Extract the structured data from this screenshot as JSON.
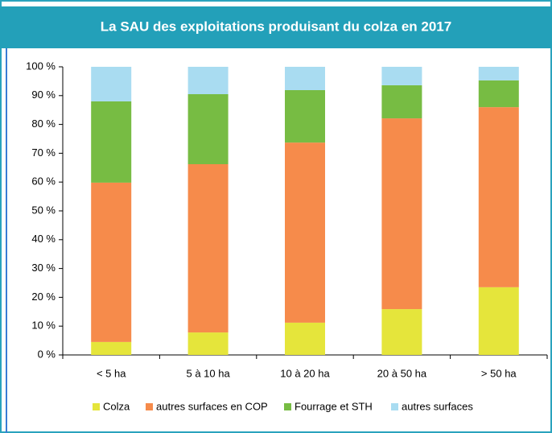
{
  "chart_data": {
    "type": "stacked_bar",
    "title": "La SAU des exploitations produisant du colza en 2017",
    "categories": [
      "< 5 ha",
      "5 à 10 ha",
      "10 à 20 ha",
      "20 à 50 ha",
      "> 50 ha"
    ],
    "series": [
      {
        "name": "Colza",
        "color": "#e5e53b",
        "values": [
          4.5,
          7.8,
          11.2,
          15.9,
          23.5
        ]
      },
      {
        "name": "autres surfaces en COP",
        "color": "#f68b4b",
        "values": [
          55.3,
          58.4,
          62.5,
          66.2,
          62.5
        ]
      },
      {
        "name": "Fourrage et STH",
        "color": "#77bc43",
        "values": [
          28.2,
          24.3,
          18.2,
          11.5,
          9.3
        ]
      },
      {
        "name": "autres surfaces",
        "color": "#a9dcf1",
        "values": [
          12.0,
          9.5,
          8.1,
          6.4,
          4.7
        ]
      }
    ],
    "ylim": [
      0,
      100
    ],
    "yticks": [
      {
        "value": 0,
        "label": "0 %"
      },
      {
        "value": 10,
        "label": "10 %"
      },
      {
        "value": 20,
        "label": "20 %"
      },
      {
        "value": 30,
        "label": "30 %"
      },
      {
        "value": 40,
        "label": "40 %"
      },
      {
        "value": 50,
        "label": "50 %"
      },
      {
        "value": 60,
        "label": "60 %"
      },
      {
        "value": 70,
        "label": "70 %"
      },
      {
        "value": 80,
        "label": "80 %"
      },
      {
        "value": 90,
        "label": "90 %"
      },
      {
        "value": 100,
        "label": "100 %"
      }
    ],
    "grid": false,
    "legend": "bottom"
  }
}
